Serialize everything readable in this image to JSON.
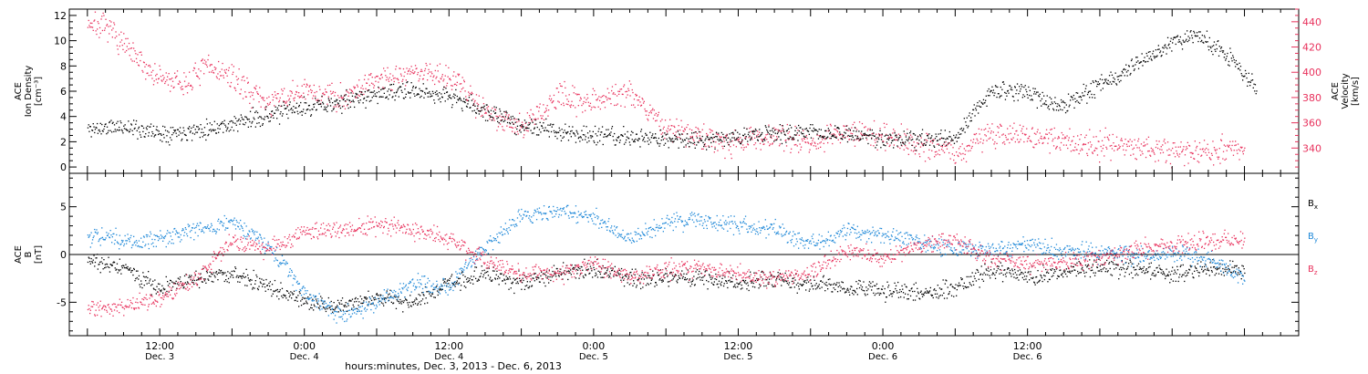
{
  "chart_data": [
    {
      "type": "scatter",
      "panel": "top",
      "ylabel_lines": [
        "ACE",
        "Ion Density",
        "[cm⁻³]"
      ],
      "y2label_lines": [
        "ACE",
        "Velocity",
        "[km/s]"
      ],
      "ylim": [
        -0.5,
        12.5
      ],
      "y2lim": [
        320,
        450
      ],
      "yticks": [
        "0",
        "2",
        "4",
        "6",
        "8",
        "10",
        "12"
      ],
      "y2ticks": [
        "340",
        "360",
        "380",
        "400",
        "420",
        "440"
      ],
      "colors": {
        "density": "#000000",
        "velocity": "#e8315c"
      },
      "series": [
        {
          "axis": "left",
          "points": [
            [
              0,
              3.0
            ],
            [
              6,
              3.2
            ],
            [
              12,
              2.7
            ],
            [
              18,
              2.9
            ],
            [
              24,
              3.4
            ],
            [
              30,
              4.1
            ],
            [
              36,
              4.7
            ],
            [
              42,
              5.1
            ],
            [
              48,
              5.8
            ],
            [
              54,
              6.0
            ],
            [
              60,
              5.6
            ],
            [
              66,
              4.4
            ],
            [
              72,
              3.3
            ],
            [
              78,
              2.8
            ],
            [
              84,
              2.5
            ],
            [
              90,
              2.3
            ],
            [
              96,
              2.2
            ],
            [
              102,
              2.2
            ],
            [
              108,
              2.4
            ],
            [
              114,
              2.6
            ],
            [
              120,
              2.8
            ],
            [
              126,
              2.5
            ],
            [
              132,
              2.3
            ],
            [
              138,
              2.1
            ],
            [
              144,
              2.2
            ],
            [
              150,
              6.2
            ],
            [
              156,
              5.8
            ],
            [
              162,
              4.8
            ],
            [
              168,
              6.5
            ],
            [
              174,
              8.0
            ],
            [
              180,
              9.8
            ],
            [
              184,
              10.5
            ],
            [
              190,
              8.4
            ],
            [
              194,
              6.3
            ]
          ]
        },
        {
          "axis": "right",
          "points": [
            [
              0,
              440
            ],
            [
              4,
              432
            ],
            [
              8,
              410
            ],
            [
              12,
              395
            ],
            [
              16,
              390
            ],
            [
              20,
              405
            ],
            [
              24,
              395
            ],
            [
              30,
              375
            ],
            [
              36,
              385
            ],
            [
              42,
              380
            ],
            [
              48,
              395
            ],
            [
              54,
              400
            ],
            [
              60,
              398
            ],
            [
              66,
              370
            ],
            [
              72,
              355
            ],
            [
              78,
              380
            ],
            [
              84,
              378
            ],
            [
              90,
              385
            ],
            [
              96,
              355
            ],
            [
              102,
              348
            ],
            [
              108,
              345
            ],
            [
              114,
              350
            ],
            [
              120,
              345
            ],
            [
              126,
              352
            ],
            [
              132,
              350
            ],
            [
              138,
              343
            ],
            [
              144,
              337
            ],
            [
              150,
              352
            ],
            [
              156,
              350
            ],
            [
              162,
              345
            ],
            [
              168,
              343
            ],
            [
              174,
              342
            ],
            [
              180,
              337
            ],
            [
              186,
              337
            ],
            [
              192,
              340
            ]
          ]
        }
      ]
    },
    {
      "type": "scatter",
      "panel": "bottom",
      "ylabel_lines": [
        "ACE",
        "B",
        "[nT]"
      ],
      "ylim": [
        -8.5,
        8.5
      ],
      "yticks": [
        "-5",
        "0",
        "5"
      ],
      "legend": [
        {
          "label": "B",
          "sub": "x",
          "color": "#000000"
        },
        {
          "label": "B",
          "sub": "y",
          "color": "#1e88d8"
        },
        {
          "label": "B",
          "sub": "z",
          "color": "#e8315c"
        }
      ],
      "series": [
        {
          "name": "Bx",
          "color": "#000000",
          "points": [
            [
              0,
              -0.5
            ],
            [
              6,
              -1.5
            ],
            [
              12,
              -3.5
            ],
            [
              18,
              -2.5
            ],
            [
              24,
              -2.0
            ],
            [
              30,
              -3.5
            ],
            [
              36,
              -5.0
            ],
            [
              42,
              -5.5
            ],
            [
              48,
              -4.5
            ],
            [
              54,
              -5.0
            ],
            [
              60,
              -3.0
            ],
            [
              66,
              -2.0
            ],
            [
              72,
              -3.0
            ],
            [
              78,
              -2.0
            ],
            [
              84,
              -1.5
            ],
            [
              90,
              -2.5
            ],
            [
              96,
              -2.5
            ],
            [
              102,
              -2.5
            ],
            [
              108,
              -3.0
            ],
            [
              114,
              -2.5
            ],
            [
              120,
              -3.0
            ],
            [
              126,
              -3.5
            ],
            [
              132,
              -3.8
            ],
            [
              138,
              -4.0
            ],
            [
              144,
              -3.5
            ],
            [
              150,
              -1.5
            ],
            [
              156,
              -2.2
            ],
            [
              162,
              -1.8
            ],
            [
              168,
              -1.2
            ],
            [
              174,
              -1.6
            ],
            [
              180,
              -2.0
            ],
            [
              186,
              -1.5
            ],
            [
              192,
              -1.8
            ]
          ]
        },
        {
          "name": "By",
          "color": "#1e88d8",
          "points": [
            [
              0,
              2.0
            ],
            [
              6,
              1.5
            ],
            [
              12,
              1.5
            ],
            [
              18,
              2.5
            ],
            [
              24,
              3.5
            ],
            [
              30,
              1.0
            ],
            [
              36,
              -4.0
            ],
            [
              42,
              -6.5
            ],
            [
              48,
              -5.0
            ],
            [
              54,
              -3.0
            ],
            [
              60,
              -3.5
            ],
            [
              66,
              1.0
            ],
            [
              72,
              4.0
            ],
            [
              78,
              4.5
            ],
            [
              84,
              4.0
            ],
            [
              90,
              1.5
            ],
            [
              96,
              3.5
            ],
            [
              102,
              3.5
            ],
            [
              108,
              3.0
            ],
            [
              114,
              2.5
            ],
            [
              120,
              1.0
            ],
            [
              126,
              2.5
            ],
            [
              132,
              2.0
            ],
            [
              138,
              1.5
            ],
            [
              144,
              0.5
            ],
            [
              150,
              0.5
            ],
            [
              156,
              0.8
            ],
            [
              162,
              0.5
            ],
            [
              168,
              0.2
            ],
            [
              174,
              -0.2
            ],
            [
              180,
              0.0
            ],
            [
              186,
              -0.5
            ],
            [
              192,
              -2.5
            ]
          ]
        },
        {
          "name": "Bz",
          "color": "#e8315c",
          "points": [
            [
              0,
              -5.5
            ],
            [
              6,
              -5.5
            ],
            [
              12,
              -4.5
            ],
            [
              18,
              -2.5
            ],
            [
              24,
              1.5
            ],
            [
              30,
              0.5
            ],
            [
              36,
              2.5
            ],
            [
              42,
              2.5
            ],
            [
              48,
              3.0
            ],
            [
              54,
              2.5
            ],
            [
              60,
              1.5
            ],
            [
              66,
              -0.5
            ],
            [
              72,
              -2.0
            ],
            [
              78,
              -2.0
            ],
            [
              84,
              -1.0
            ],
            [
              90,
              -2.5
            ],
            [
              96,
              -1.5
            ],
            [
              102,
              -1.5
            ],
            [
              108,
              -2.0
            ],
            [
              114,
              -2.5
            ],
            [
              120,
              -2.0
            ],
            [
              126,
              0.5
            ],
            [
              132,
              -0.5
            ],
            [
              138,
              1.0
            ],
            [
              144,
              1.5
            ],
            [
              150,
              -0.5
            ],
            [
              156,
              -1.0
            ],
            [
              162,
              -0.8
            ],
            [
              168,
              -0.3
            ],
            [
              174,
              0.5
            ],
            [
              180,
              1.0
            ],
            [
              186,
              1.5
            ],
            [
              192,
              1.5
            ]
          ]
        }
      ]
    }
  ],
  "xaxis": {
    "range_hours": [
      -3,
      201
    ],
    "ticks": [
      {
        "hour": 12,
        "time": "12:00",
        "date": "Dec. 3"
      },
      {
        "hour": 36,
        "time": "0:00",
        "date": "Dec. 4"
      },
      {
        "hour": 60,
        "time": "12:00",
        "date": "Dec. 4"
      },
      {
        "hour": 84,
        "time": "0:00",
        "date": "Dec. 5"
      },
      {
        "hour": 108,
        "time": "12:00",
        "date": "Dec. 5"
      },
      {
        "hour": 132,
        "time": "0:00",
        "date": "Dec. 6"
      },
      {
        "hour": 156,
        "time": "12:00",
        "date": "Dec. 6"
      }
    ],
    "label": "hours:minutes, Dec.  3, 2013 - Dec.  6, 2013"
  }
}
